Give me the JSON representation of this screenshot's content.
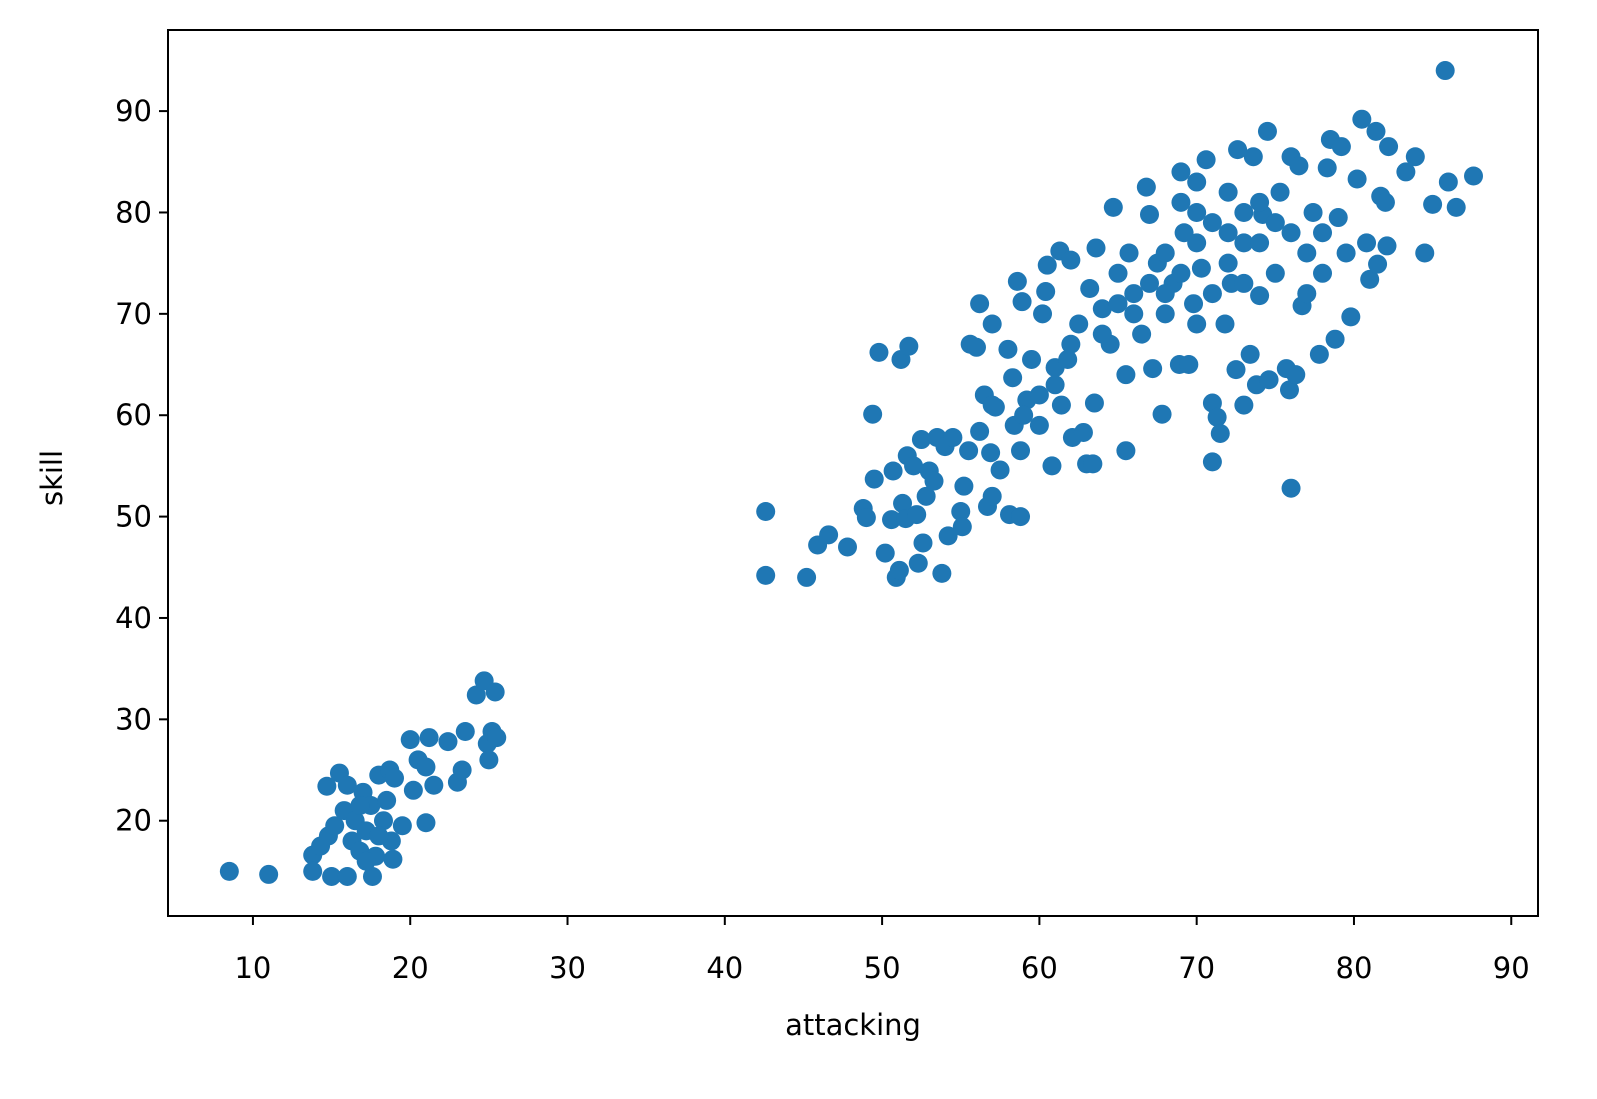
{
  "chart_data": {
    "type": "scatter",
    "x_label": "attacking",
    "y_label": "skill",
    "color": "#1f77b4",
    "xlim": [
      4.6,
      91.7
    ],
    "ylim": [
      10.6,
      98.0
    ],
    "xticks": [
      10,
      20,
      30,
      40,
      50,
      60,
      70,
      80,
      90
    ],
    "yticks": [
      20,
      30,
      40,
      50,
      60,
      70,
      80,
      90
    ],
    "x": [
      8.5,
      11,
      13.8,
      13.8,
      14.3,
      14.7,
      14.8,
      15,
      15.2,
      15.5,
      15.8,
      16,
      16,
      16.3,
      16.5,
      16.8,
      17,
      17.2,
      17.5,
      17.6,
      17.8,
      18,
      18.3,
      18.5,
      18.7,
      18.8,
      18.9,
      19,
      19.5,
      20,
      20.2,
      20.5,
      21,
      21,
      21.2,
      21.5,
      22.4,
      23,
      23.3,
      23.5,
      24.2,
      24.7,
      24.9,
      25,
      25.2,
      25.4,
      25.5,
      17.2,
      16.8,
      18,
      42.6,
      42.6,
      45.2,
      45.9,
      46.6,
      47.8,
      48.8,
      49,
      49.4,
      49.5,
      49.8,
      50.2,
      50.7,
      50.6,
      50.9,
      51.1,
      51.2,
      51.3,
      51.5,
      51.6,
      51.7,
      52,
      52.2,
      52.3,
      52.5,
      52.6,
      52.8,
      53,
      53.3,
      53.5,
      53.8,
      54,
      54.2,
      54.5,
      55,
      55.1,
      55.2,
      55.5,
      55.6,
      56,
      56.2,
      56.2,
      56.5,
      56.7,
      56.9,
      57,
      57,
      57.2,
      57.5,
      58,
      58.1,
      58.3,
      58.4,
      58.6,
      58.8,
      58.8,
      58.9,
      59.2,
      59.5,
      60,
      60.2,
      60.4,
      60.5,
      60.8,
      61,
      61.3,
      61.4,
      61.8,
      62,
      62.1,
      62.5,
      62.8,
      63,
      63.2,
      63.4,
      63.5,
      63.6,
      64,
      64.5,
      64.7,
      65,
      65.5,
      65.5,
      65.7,
      66,
      66.5,
      66.8,
      67,
      67.2,
      67.5,
      67.8,
      68,
      68.5,
      68.9,
      69,
      69.2,
      69.5,
      69.8,
      70,
      70.3,
      70.6,
      71,
      71,
      71.3,
      71.5,
      71.8,
      72,
      72.2,
      72.5,
      72.6,
      73,
      73,
      73.4,
      73.6,
      73.8,
      74,
      74.2,
      74.5,
      74.6,
      75,
      75.3,
      75.7,
      75.9,
      76,
      76,
      76.3,
      76.5,
      76.7,
      77,
      77.4,
      77.8,
      78,
      78.3,
      78.5,
      78.8,
      79,
      79.2,
      79.5,
      79.8,
      80.2,
      80.5,
      80.8,
      81,
      81.4,
      81.5,
      81.7,
      82.2,
      82.1,
      82,
      83.3,
      83.9,
      84.5,
      85,
      85.8,
      86,
      86.5,
      87.6,
      68,
      69,
      70,
      71,
      72,
      73,
      74,
      70,
      68,
      66,
      67,
      71,
      72,
      74,
      75,
      76,
      77,
      78,
      70,
      69,
      73,
      64,
      65,
      62,
      60,
      59,
      57,
      61
    ],
    "values": [
      15,
      14.7,
      16.6,
      15,
      17.5,
      23.4,
      18.5,
      14.5,
      19.5,
      24.7,
      21,
      14.5,
      23.5,
      18,
      20,
      17,
      22.8,
      19,
      21.5,
      14.5,
      16.5,
      24.5,
      20,
      22,
      25,
      18,
      16.2,
      24.2,
      19.5,
      28,
      23,
      26,
      25.3,
      19.8,
      28.2,
      23.5,
      27.8,
      23.8,
      25,
      28.8,
      32.4,
      33.8,
      27.6,
      26,
      28.8,
      32.7,
      28.2,
      16,
      21.5,
      18.5,
      50.5,
      44.2,
      44,
      47.2,
      48.2,
      47,
      50.8,
      49.9,
      60.1,
      53.7,
      66.2,
      46.4,
      54.5,
      49.7,
      44,
      44.7,
      65.5,
      51.3,
      49.8,
      56,
      66.8,
      55,
      50.2,
      45.4,
      57.6,
      47.4,
      52,
      54.5,
      53.5,
      57.8,
      44.4,
      56.9,
      48.1,
      57.8,
      50.5,
      49,
      53,
      56.5,
      67,
      66.7,
      71,
      58.4,
      62,
      51,
      56.3,
      69,
      52,
      60.8,
      54.6,
      66.5,
      50.2,
      63.7,
      59,
      73.2,
      50,
      56.5,
      71.2,
      61.5,
      65.5,
      59,
      70,
      72.2,
      74.8,
      55,
      64.7,
      76.2,
      61,
      65.5,
      75.3,
      57.8,
      69,
      58.3,
      55.2,
      72.5,
      55.2,
      61.2,
      76.5,
      70.5,
      67,
      80.5,
      74,
      56.5,
      64,
      76,
      72,
      68,
      82.5,
      79.8,
      64.6,
      75,
      60.1,
      70,
      73,
      65,
      84,
      78,
      65,
      71,
      83,
      74.5,
      85.2,
      55.4,
      61.2,
      59.8,
      58.2,
      69,
      82,
      73,
      64.5,
      86.2,
      61,
      77,
      66,
      85.5,
      63,
      71.8,
      79.8,
      88,
      63.5,
      74,
      82,
      64.6,
      62.5,
      52.8,
      85.5,
      64,
      84.6,
      70.8,
      76,
      80,
      66,
      74,
      84.4,
      87.2,
      67.5,
      79.5,
      86.5,
      76,
      69.7,
      83.3,
      89.2,
      77,
      73.4,
      88,
      74.9,
      81.6,
      86.5,
      76.7,
      81,
      84,
      85.5,
      76,
      80.8,
      94,
      83,
      80.5,
      83.6,
      76,
      74,
      77,
      79,
      75,
      80,
      77,
      69,
      72,
      70,
      73,
      72,
      78,
      81,
      79,
      78,
      72,
      78,
      80,
      81,
      73,
      68,
      71,
      67,
      62,
      60,
      61,
      63
    ]
  }
}
